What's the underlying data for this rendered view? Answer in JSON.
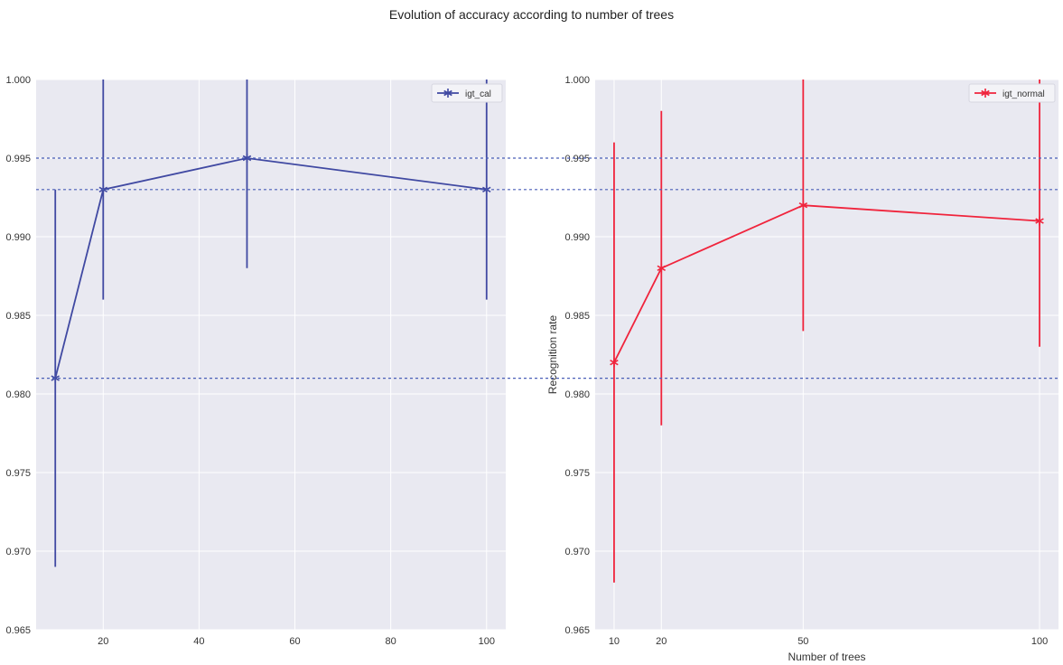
{
  "figure": {
    "title": "Evolution of accuracy according to number of trees"
  },
  "colors": {
    "plot_bg": "#e9e9f1",
    "grid": "#ffffff",
    "series_left": "#4049a2",
    "series_right": "#f0243c",
    "ref_line": "#4a5fb8"
  },
  "chart_data": [
    {
      "type": "line",
      "title": "",
      "xlabel": "",
      "ylabel": "",
      "xlim": [
        6,
        104
      ],
      "ylim": [
        0.965,
        1.0
      ],
      "xticks": [
        20,
        40,
        60,
        80,
        100
      ],
      "yticks": [
        0.965,
        0.97,
        0.975,
        0.98,
        0.985,
        0.99,
        0.995,
        1.0
      ],
      "ytick_labels": [
        "0.965",
        "0.970",
        "0.975",
        "0.980",
        "0.985",
        "0.990",
        "0.995",
        "1.000"
      ],
      "grid": true,
      "legend_position": "top-right",
      "reference_lines": [
        0.995,
        0.993,
        0.981
      ],
      "series": [
        {
          "name": "igt_cal",
          "color": "#4049a2",
          "marker": "*",
          "x": [
            10,
            20,
            50,
            100
          ],
          "y": [
            0.981,
            0.993,
            0.995,
            0.993
          ],
          "err_low": [
            0.969,
            0.986,
            0.988,
            0.986
          ],
          "err_high": [
            0.993,
            1.0,
            1.0,
            1.0
          ]
        }
      ]
    },
    {
      "type": "line",
      "title": "",
      "xlabel": "Number of trees",
      "ylabel": "Recognition rate",
      "xlim": [
        6,
        104
      ],
      "ylim": [
        0.965,
        1.0
      ],
      "xticks": [
        10,
        20,
        50,
        100
      ],
      "yticks": [
        0.965,
        0.97,
        0.975,
        0.98,
        0.985,
        0.99,
        0.995,
        1.0
      ],
      "ytick_labels": [
        "0.965",
        "0.970",
        "0.975",
        "0.980",
        "0.985",
        "0.990",
        "0.995",
        "1.000"
      ],
      "grid": true,
      "legend_position": "top-right",
      "reference_lines": [
        0.995,
        0.993,
        0.981
      ],
      "series": [
        {
          "name": "igt_normal",
          "color": "#f0243c",
          "marker": "*",
          "x": [
            10,
            20,
            50,
            100
          ],
          "y": [
            0.982,
            0.988,
            0.992,
            0.991
          ],
          "err_low": [
            0.968,
            0.978,
            0.984,
            0.983
          ],
          "err_high": [
            0.996,
            0.998,
            1.0,
            1.0
          ]
        }
      ]
    }
  ]
}
